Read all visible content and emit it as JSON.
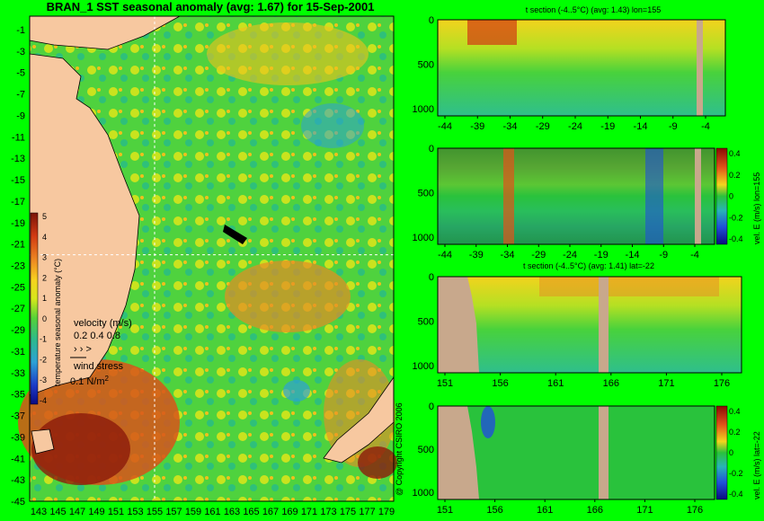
{
  "chart_data": [
    {
      "type": "heatmap",
      "title": "BRAN_1  SST seasonal anomaly (avg: 1.67) for 15-Sep-2001",
      "x_ticks": [
        "143",
        "145",
        "147",
        "149",
        "151",
        "153",
        "155",
        "157",
        "159",
        "161",
        "163",
        "165",
        "167",
        "169",
        "171",
        "173",
        "175",
        "177",
        "179"
      ],
      "y_ticks": [
        "-1",
        "-3",
        "-5",
        "-7",
        "-9",
        "-11",
        "-13",
        "-15",
        "-17",
        "-19",
        "-21",
        "-23",
        "-25",
        "-27",
        "-29",
        "-31",
        "-33",
        "-35",
        "-37",
        "-39",
        "-41",
        "-43",
        "-45"
      ],
      "crosshair": {
        "lon": 155,
        "lat": -22
      },
      "colorbar": {
        "label": "temperature seasonal anomaly (°C)",
        "ticks": [
          "5",
          "4",
          "3",
          "2",
          "1",
          "0",
          "-1",
          "-2",
          "-3",
          "-4"
        ],
        "range": [
          -4,
          5
        ]
      },
      "velocity_legend": {
        "label": "velocity (m/s)",
        "values": "0.2 0.4 0.8"
      },
      "wind_legend": {
        "label": "wind stress",
        "value": "0.1 N/m"
      }
    },
    {
      "type": "heatmap",
      "title": "t section (-4..5°C) (avg: 1.43) lon=155",
      "x_ticks": [
        "-44",
        "-39",
        "-34",
        "-29",
        "-24",
        "-19",
        "-14",
        "-9",
        "-4"
      ],
      "y_ticks": [
        "0",
        "500",
        "1000"
      ]
    },
    {
      "type": "heatmap",
      "title": "",
      "x_ticks": [
        "-44",
        "-39",
        "-34",
        "-29",
        "-24",
        "-19",
        "-14",
        "-9",
        "-4"
      ],
      "y_ticks": [
        "0",
        "500",
        "1000"
      ],
      "colorbar": {
        "label": "vel. E (m/s) lon=155",
        "ticks": [
          "0.4",
          "0.2",
          "0",
          "-0.2",
          "-0.4"
        ],
        "range": [
          -0.4,
          0.4
        ]
      }
    },
    {
      "type": "heatmap",
      "title": "t section (-4..5°C) (avg: 1.41) lat=-22",
      "x_ticks": [
        "151",
        "156",
        "161",
        "166",
        "171",
        "176"
      ],
      "y_ticks": [
        "0",
        "500",
        "1000"
      ]
    },
    {
      "type": "heatmap",
      "title": "",
      "x_ticks": [
        "151",
        "156",
        "161",
        "166",
        "171",
        "176"
      ],
      "y_ticks": [
        "0",
        "500",
        "1000"
      ],
      "colorbar": {
        "label": "vel. E (m/s) lat=-22",
        "ticks": [
          "0.4",
          "0.2",
          "0",
          "-0.2",
          "-0.4"
        ],
        "range": [
          -0.4,
          0.4
        ]
      }
    }
  ],
  "copyright": "@ Copyright CSIRO 2006"
}
